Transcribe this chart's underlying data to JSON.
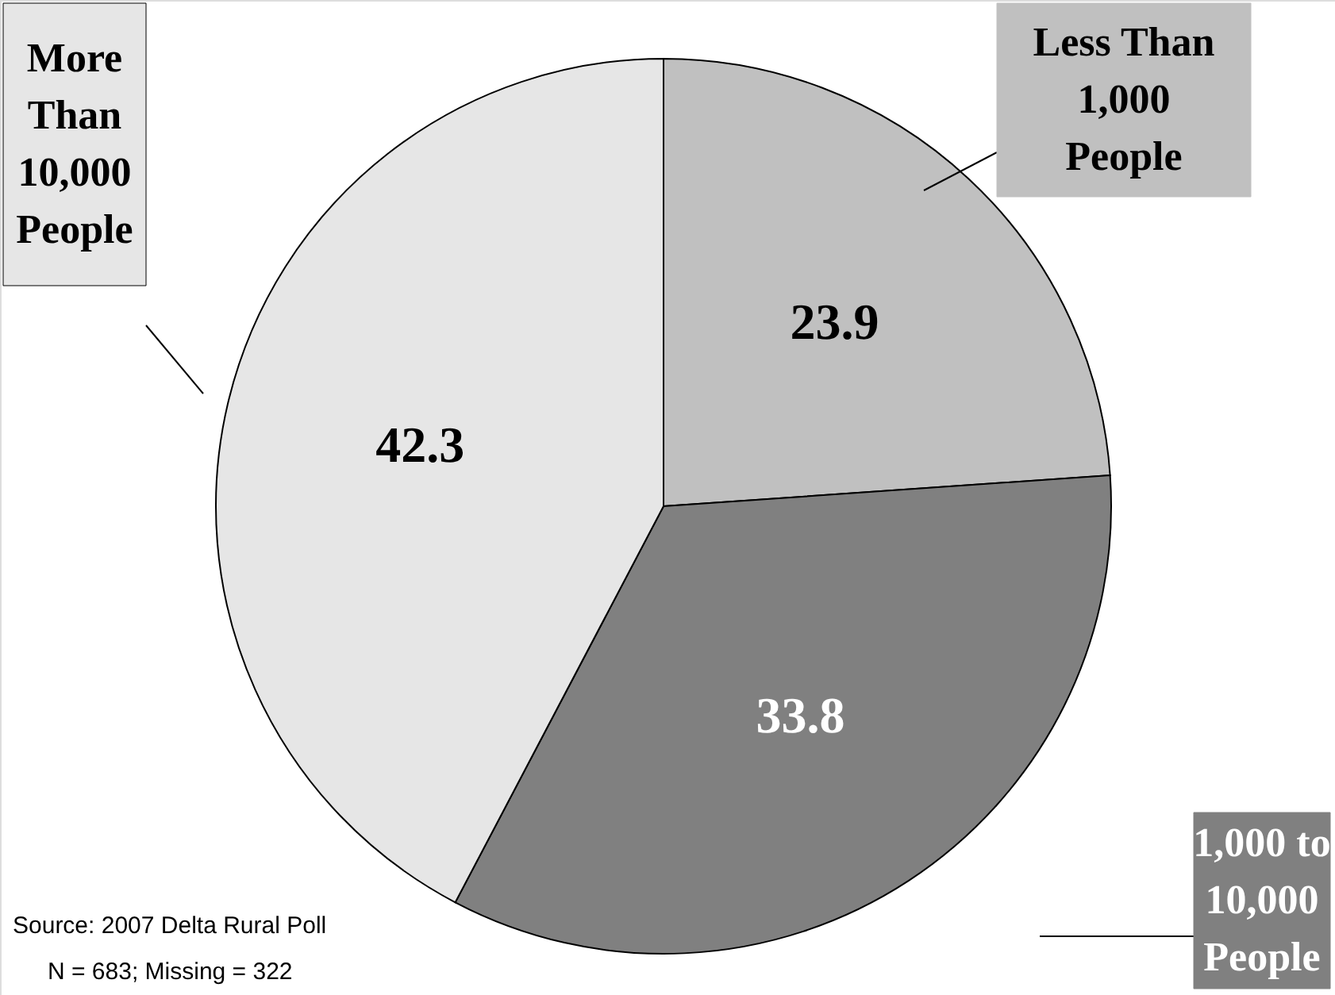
{
  "chart_data": {
    "type": "pie",
    "categories": [
      "Less Than\n1,000\nPeople",
      "1,000 to\n10,000\nPeople",
      "More\nThan\n10,000\nPeople"
    ],
    "values": [
      23.9,
      33.8,
      42.3
    ],
    "colors": [
      "#c0c0c0",
      "#808080",
      "#e6e6e6"
    ],
    "data_labels": true,
    "annotations": [
      "Source:  2007 Delta Rural Poll",
      "N = 683; Missing = 322"
    ]
  }
}
